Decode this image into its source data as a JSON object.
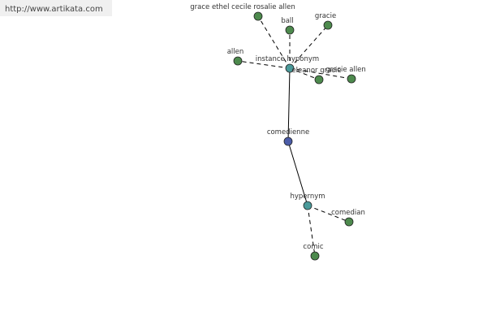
{
  "header": {
    "url": "http://www.artikata.com"
  },
  "nodes": [
    {
      "label": "comedienne"
    },
    {
      "label": "instance hyponym"
    },
    {
      "label": "hypernym"
    },
    {
      "label": "grace ethel cecile rosalie allen"
    },
    {
      "label": "ball"
    },
    {
      "label": "gracie"
    },
    {
      "label": "allen"
    },
    {
      "label": "eleanor gracie"
    },
    {
      "label": "gracie allen"
    },
    {
      "label": "comedian"
    },
    {
      "label": "comic"
    }
  ]
}
